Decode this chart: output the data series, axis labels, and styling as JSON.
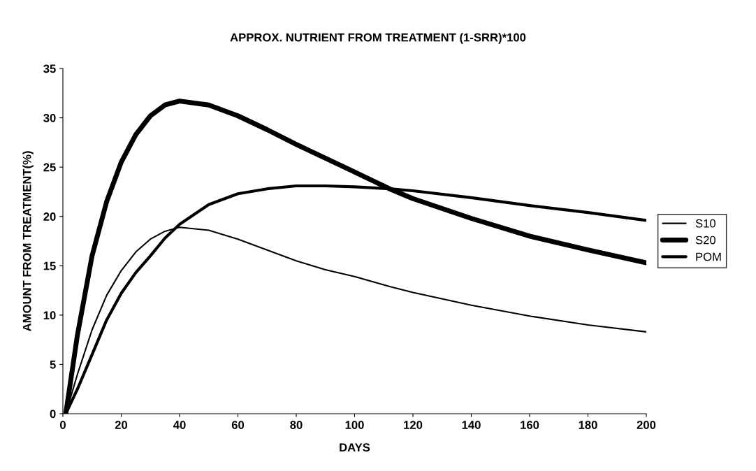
{
  "chart_data": {
    "type": "line",
    "title": "APPROX. NUTRIENT FROM TREATMENT (1-SRR)*100",
    "xlabel": "DAYS",
    "ylabel": "AMOUNT FROM TREATMENT(%)",
    "x": [
      1,
      5,
      10,
      15,
      20,
      25,
      30,
      35,
      40,
      50,
      60,
      70,
      80,
      90,
      100,
      112,
      120,
      140,
      160,
      180,
      200
    ],
    "series": [
      {
        "name": "S10",
        "color": "#000000",
        "values": [
          0,
          4,
          8.5,
          12,
          14.5,
          16.4,
          17.7,
          18.5,
          18.9,
          18.6,
          17.7,
          16.6,
          15.5,
          14.6,
          13.9,
          12.9,
          12.3,
          11,
          9.9,
          9.0,
          8.3
        ]
      },
      {
        "name": "S20",
        "color": "#000000",
        "values": [
          0,
          8,
          16,
          21.5,
          25.5,
          28.3,
          30.2,
          31.3,
          31.7,
          31.3,
          30.2,
          28.8,
          27.3,
          25.9,
          24.5,
          22.8,
          21.8,
          19.8,
          18.0,
          16.6,
          15.3
        ]
      },
      {
        "name": "POM",
        "color": "#000000",
        "values": [
          0,
          2.5,
          6,
          9.5,
          12.2,
          14.3,
          16,
          17.8,
          19.2,
          21.2,
          22.3,
          22.8,
          23.1,
          23.1,
          23.0,
          22.8,
          22.6,
          21.9,
          21.1,
          20.4,
          19.6
        ]
      }
    ],
    "xlim": [
      0,
      200
    ],
    "xticks": [
      0,
      20,
      40,
      60,
      80,
      100,
      120,
      140,
      160,
      180,
      200
    ],
    "ylim": [
      0,
      35
    ],
    "yticks": [
      0,
      5,
      10,
      15,
      20,
      25,
      30,
      35
    ],
    "grid": false,
    "legend": "right",
    "marker": "none",
    "line_style": "solid"
  }
}
